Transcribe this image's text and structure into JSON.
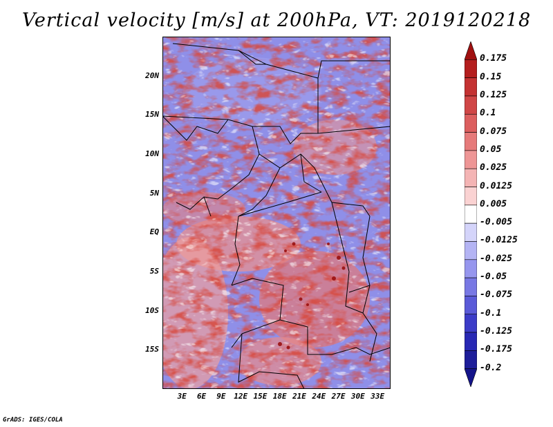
{
  "title": "Vertical velocity [m/s] at 200hPa, VT: 2019120218",
  "footer": "GrADS: IGES/COLA",
  "map": {
    "lat_labels": [
      "20N",
      "15N",
      "10N",
      "5N",
      "EQ",
      "5S",
      "10S",
      "15S"
    ],
    "lon_labels": [
      "3E",
      "6E",
      "9E",
      "12E",
      "15E",
      "18E",
      "21E",
      "24E",
      "27E",
      "30E",
      "33E"
    ],
    "lat_range": [
      -20,
      25
    ],
    "lon_range": [
      0,
      35
    ]
  },
  "colorbar": {
    "levels": [
      "0.175",
      "0.15",
      "0.125",
      "0.1",
      "0.075",
      "0.05",
      "0.025",
      "0.0125",
      "0.005",
      "-0.005",
      "-0.0125",
      "-0.025",
      "-0.05",
      "-0.075",
      "-0.1",
      "-0.125",
      "-0.175",
      "-0.2"
    ],
    "colors": [
      "#a01010",
      "#b41e1e",
      "#c43232",
      "#d04646",
      "#dc5e5e",
      "#e67a7a",
      "#ee9696",
      "#f4b4b4",
      "#fad2d2",
      "#ffffff",
      "#d4d4fa",
      "#b4b4f4",
      "#9696ee",
      "#7878e4",
      "#5a5ad8",
      "#3c3cc8",
      "#2828b4",
      "#1e1e9a",
      "#14148a"
    ]
  },
  "legend": {
    "positive_color": "#d03030",
    "negative_color": "#3030c8"
  }
}
